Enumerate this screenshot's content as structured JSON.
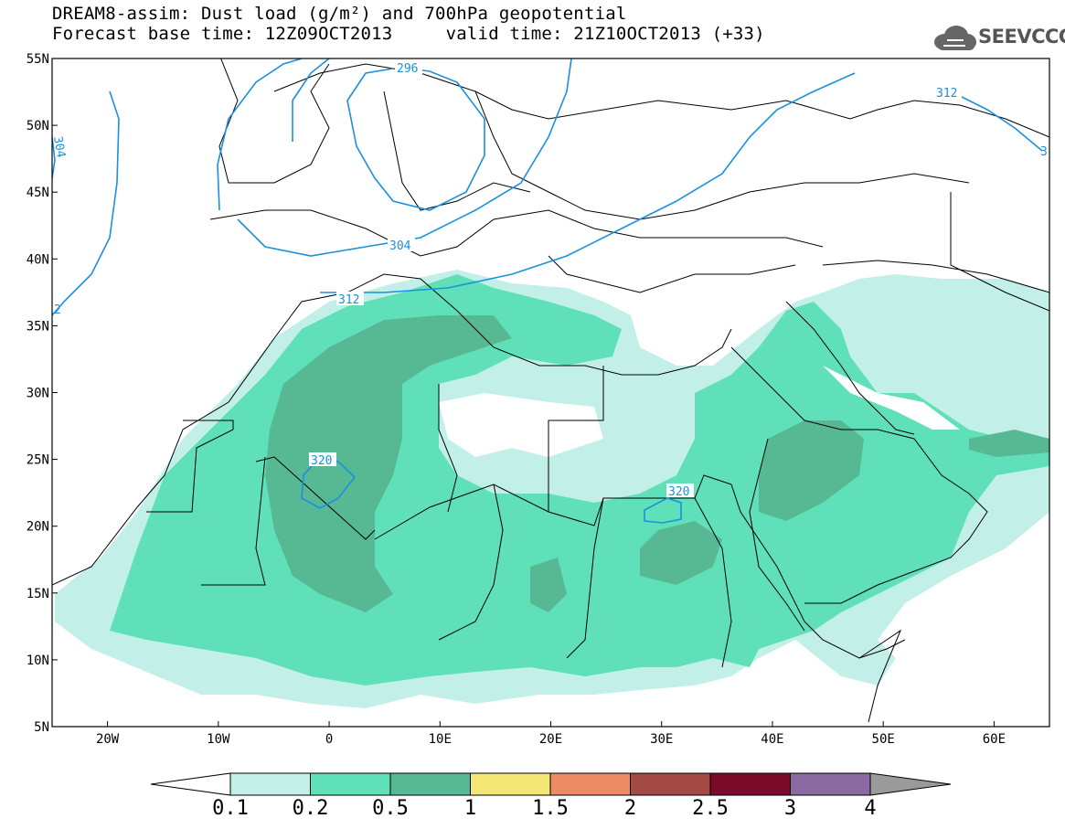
{
  "title": {
    "line1": "DREAM8-assim: Dust load (g/m²) and 700hPa geopotential",
    "line2": "Forecast base time: 12Z09OCT2013     valid time: 21Z10OCT2013 (+33)"
  },
  "logo": {
    "text": "SEEVCCC",
    "icon": "cloud-icon"
  },
  "map": {
    "lon_range": [
      -25,
      65
    ],
    "lat_range": [
      5,
      55
    ],
    "lat_ticks": [
      "55N",
      "50N",
      "45N",
      "40N",
      "35N",
      "30N",
      "25N",
      "20N",
      "15N",
      "10N",
      "5N"
    ],
    "lon_ticks": [
      "20W",
      "10W",
      "0",
      "10E",
      "20E",
      "30E",
      "40E",
      "50E",
      "60E"
    ],
    "contour_labels": [
      "296",
      "304",
      "312",
      "312",
      "320",
      "320",
      "3",
      "2",
      "304"
    ]
  },
  "colorbar": {
    "labels": [
      "0.1",
      "0.2",
      "0.5",
      "1",
      "1.5",
      "2",
      "2.5",
      "3",
      "4"
    ],
    "colors": [
      "#c2f0e8",
      "#5fe0b8",
      "#57b994",
      "#f4e776",
      "#ec8c66",
      "#a44a44",
      "#7a0a2a",
      "#8a6aa0"
    ],
    "colors_note": "under: #ffffff, over: #9a9a9a"
  },
  "colors": {
    "contour": "#1a90e0",
    "border": "#000000"
  }
}
